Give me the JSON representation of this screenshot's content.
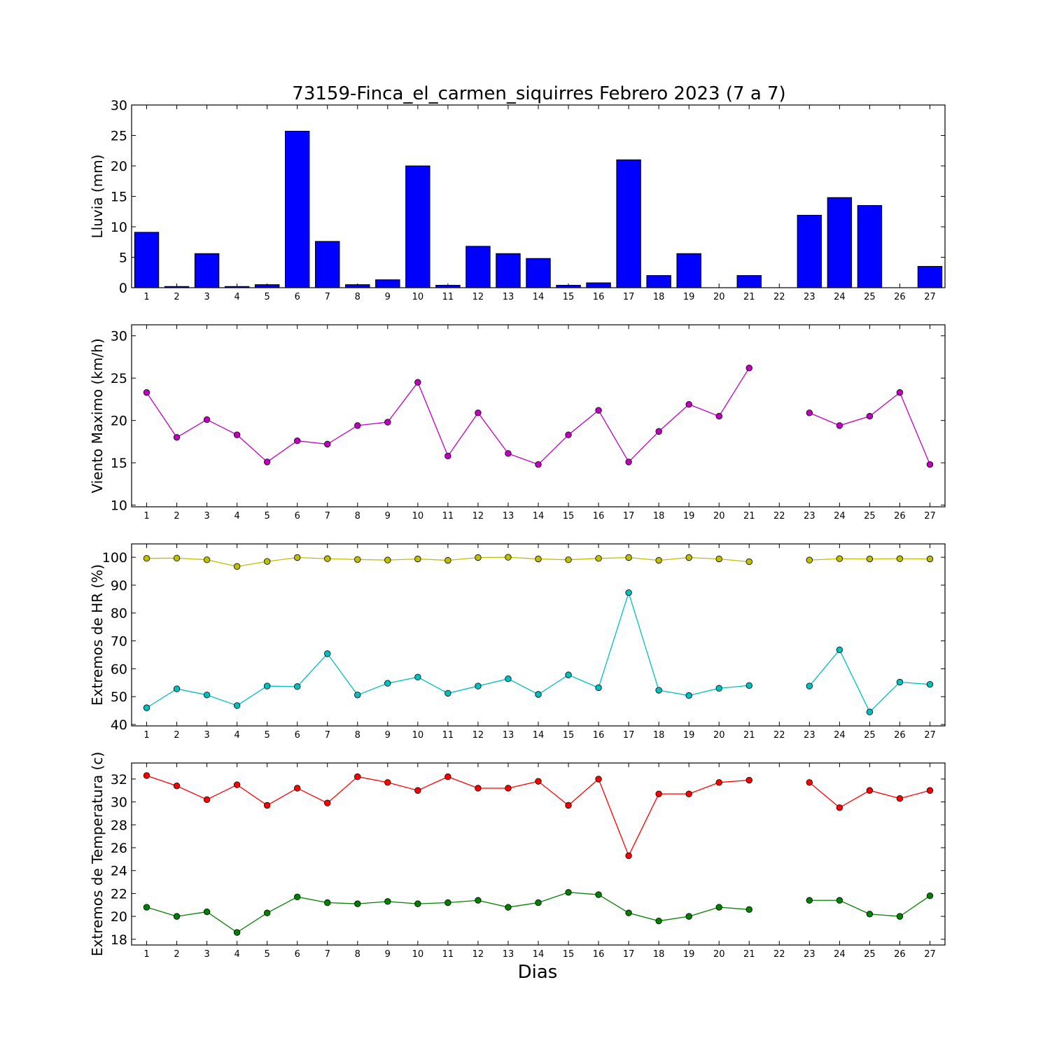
{
  "title": "73159-Finca_el_carmen_siquirres Febrero 2023  (7 a 7)",
  "xlabel": "Dias",
  "chart_data": [
    {
      "type": "bar",
      "ylabel": "Lluvia (mm)",
      "ylim": [
        0,
        30
      ],
      "yticks": [
        0,
        5,
        10,
        15,
        20,
        25,
        30
      ],
      "categories": [
        "1",
        "2",
        "3",
        "4",
        "5",
        "6",
        "7",
        "8",
        "9",
        "10",
        "11",
        "12",
        "13",
        "14",
        "15",
        "16",
        "17",
        "18",
        "19",
        "20",
        "21",
        "22",
        "23",
        "24",
        "25",
        "26",
        "27"
      ],
      "series": [
        {
          "color": "#0000ff",
          "values": [
            9.1,
            0.2,
            5.6,
            0.2,
            0.5,
            25.7,
            7.6,
            0.5,
            1.3,
            20.0,
            0.4,
            6.8,
            5.6,
            4.8,
            0.4,
            0.8,
            21.0,
            2.0,
            5.6,
            0.0,
            2.0,
            null,
            11.9,
            14.8,
            13.5,
            0.0,
            3.5
          ]
        }
      ],
      "grid": false
    },
    {
      "type": "line",
      "ylabel": "Viento Maximo (km/h)",
      "ylim": [
        9.8,
        31.3
      ],
      "yticks": [
        10,
        15,
        20,
        25,
        30
      ],
      "categories": [
        "1",
        "2",
        "3",
        "4",
        "5",
        "6",
        "7",
        "8",
        "9",
        "10",
        "11",
        "12",
        "13",
        "14",
        "15",
        "16",
        "17",
        "18",
        "19",
        "20",
        "21",
        "22",
        "23",
        "24",
        "25",
        "26",
        "27"
      ],
      "series": [
        {
          "color": "#bf00bf",
          "values": [
            23.3,
            18.0,
            20.1,
            18.3,
            15.1,
            17.6,
            17.2,
            19.4,
            19.8,
            24.5,
            15.8,
            20.9,
            16.1,
            14.8,
            18.3,
            21.2,
            15.1,
            18.7,
            21.9,
            20.5,
            26.2,
            null,
            20.9,
            19.4,
            20.5,
            23.3,
            14.8
          ]
        }
      ],
      "grid": false
    },
    {
      "type": "line",
      "ylabel": "Extremos de HR (%)",
      "ylim": [
        39.5,
        104.8
      ],
      "yticks": [
        40,
        50,
        60,
        70,
        80,
        90,
        100
      ],
      "categories": [
        "1",
        "2",
        "3",
        "4",
        "5",
        "6",
        "7",
        "8",
        "9",
        "10",
        "11",
        "12",
        "13",
        "14",
        "15",
        "16",
        "17",
        "18",
        "19",
        "20",
        "21",
        "22",
        "23",
        "24",
        "25",
        "26",
        "27"
      ],
      "series": [
        {
          "color": "#bfbf00",
          "values": [
            99.6,
            99.7,
            99.1,
            96.7,
            98.5,
            99.9,
            99.5,
            99.2,
            99.0,
            99.4,
            98.9,
            99.9,
            100.0,
            99.4,
            99.1,
            99.6,
            99.9,
            98.9,
            99.9,
            99.4,
            98.4,
            null,
            99.0,
            99.5,
            99.4,
            99.5,
            99.4
          ]
        },
        {
          "color": "#00bfbf",
          "values": [
            46.0,
            52.8,
            50.6,
            46.8,
            53.8,
            53.6,
            65.4,
            50.6,
            54.8,
            57.0,
            51.2,
            53.8,
            56.4,
            50.8,
            57.8,
            53.2,
            87.3,
            52.3,
            50.4,
            53.0,
            54.0,
            null,
            53.8,
            66.8,
            44.5,
            55.2,
            54.4
          ]
        }
      ],
      "grid": false
    },
    {
      "type": "line",
      "ylabel": "Extremos de Temperatura (c)",
      "ylim": [
        17.5,
        33.4
      ],
      "yticks": [
        18,
        20,
        22,
        24,
        26,
        28,
        30,
        32
      ],
      "categories": [
        "1",
        "2",
        "3",
        "4",
        "5",
        "6",
        "7",
        "8",
        "9",
        "10",
        "11",
        "12",
        "13",
        "14",
        "15",
        "16",
        "17",
        "18",
        "19",
        "20",
        "21",
        "22",
        "23",
        "24",
        "25",
        "26",
        "27"
      ],
      "series": [
        {
          "color": "#ff0000",
          "values": [
            32.3,
            31.4,
            30.2,
            31.5,
            29.7,
            31.2,
            29.9,
            32.2,
            31.7,
            31.0,
            32.2,
            31.2,
            31.2,
            31.8,
            29.7,
            32.0,
            25.3,
            30.7,
            30.7,
            31.7,
            31.9,
            null,
            31.7,
            29.5,
            31.0,
            30.3,
            31.0
          ]
        },
        {
          "color": "#008000",
          "values": [
            20.8,
            20.0,
            20.4,
            18.6,
            20.3,
            21.7,
            21.2,
            21.1,
            21.3,
            21.1,
            21.2,
            21.4,
            20.8,
            21.2,
            22.1,
            21.9,
            20.3,
            19.6,
            20.0,
            20.8,
            20.6,
            null,
            21.4,
            21.4,
            20.2,
            20.0,
            21.8
          ]
        }
      ],
      "grid": false
    }
  ]
}
